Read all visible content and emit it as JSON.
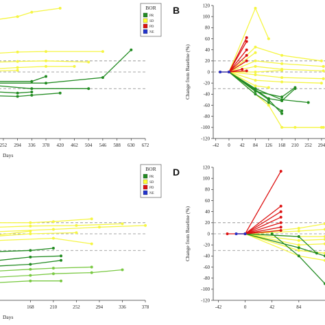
{
  "legend": {
    "title": "BOR",
    "entries": [
      {
        "label": "PR",
        "color": "#228b22"
      },
      {
        "label": "SD",
        "color": "#ffff33"
      },
      {
        "label": "PD",
        "color": "#dd1111"
      },
      {
        "label": "NE",
        "color": "#2233cc"
      }
    ]
  },
  "colors": {
    "PR": "#228b22",
    "SD": "#f5f542",
    "PD": "#dd1111",
    "NE": "#2233cc",
    "PR2": "#7ac943"
  },
  "chart_data": [
    {
      "id": "A",
      "type": "line",
      "panel_label": "",
      "xlabel": "Days",
      "ylabel": "",
      "xticks": [
        "252",
        "294",
        "336",
        "378",
        "420",
        "462",
        "504",
        "546",
        "588",
        "630",
        "672"
      ],
      "xlim": [
        238,
        672
      ],
      "ylim": [
        -120,
        120
      ],
      "ref_lines": [
        20,
        0,
        -30
      ],
      "series": [
        {
          "bor": "SD",
          "x": [
            238,
            294,
            336,
            420
          ],
          "y": [
            95,
            100,
            108,
            115
          ]
        },
        {
          "bor": "SD",
          "x": [
            238,
            294,
            378,
            546
          ],
          "y": [
            34,
            36,
            37,
            37
          ]
        },
        {
          "bor": "SD",
          "x": [
            238,
            294,
            378,
            504
          ],
          "y": [
            18,
            19,
            20,
            18
          ]
        },
        {
          "bor": "SD",
          "x": [
            238,
            294,
            378,
            462
          ],
          "y": [
            6,
            8,
            10,
            10
          ]
        },
        {
          "bor": "SD",
          "x": [
            238,
            294
          ],
          "y": [
            2,
            3
          ]
        },
        {
          "bor": "PR",
          "x": [
            238,
            378,
            546,
            630
          ],
          "y": [
            -20,
            -20,
            -10,
            40
          ]
        },
        {
          "bor": "PR",
          "x": [
            238,
            336,
            378
          ],
          "y": [
            -17,
            -17,
            -8
          ]
        },
        {
          "bor": "PR",
          "x": [
            238,
            336,
            504
          ],
          "y": [
            -25,
            -30,
            -30
          ]
        },
        {
          "bor": "PR",
          "x": [
            238,
            294,
            336
          ],
          "y": [
            -36,
            -38,
            -36
          ]
        },
        {
          "bor": "PR",
          "x": [
            238,
            294,
            336,
            420
          ],
          "y": [
            -43,
            -44,
            -42,
            -38
          ]
        }
      ]
    },
    {
      "id": "B",
      "type": "line",
      "panel_label": "B",
      "xlabel": "",
      "ylabel": "Change from Baseline (%)",
      "xticks": [
        "-42",
        "0",
        "42",
        "84",
        "126",
        "168",
        "210",
        "252",
        "294"
      ],
      "yticks": [
        "120",
        "100",
        "80",
        "60",
        "40",
        "20",
        "0",
        "-20",
        "-40",
        "-60",
        "-80",
        "-100",
        "-120"
      ],
      "xlim": [
        -50,
        305
      ],
      "ylim": [
        -120,
        120
      ],
      "ref_lines": [
        20,
        0,
        -30
      ],
      "series": [
        {
          "bor": "SD",
          "x": [
            -28,
            0,
            84,
            126
          ],
          "y": [
            0,
            0,
            115,
            60
          ]
        },
        {
          "bor": "SD",
          "x": [
            0,
            84,
            168,
            294
          ],
          "y": [
            0,
            45,
            30,
            20
          ]
        },
        {
          "bor": "SD",
          "x": [
            0,
            84,
            168,
            300
          ],
          "y": [
            0,
            20,
            15,
            10
          ]
        },
        {
          "bor": "SD",
          "x": [
            0,
            84,
            168,
            300
          ],
          "y": [
            0,
            10,
            5,
            2
          ]
        },
        {
          "bor": "SD",
          "x": [
            0,
            84,
            168,
            300
          ],
          "y": [
            0,
            -5,
            -10,
            -12
          ]
        },
        {
          "bor": "SD",
          "x": [
            0,
            84,
            168,
            294
          ],
          "y": [
            0,
            -15,
            -18,
            -20
          ]
        },
        {
          "bor": "SD",
          "x": [
            0,
            84,
            126
          ],
          "y": [
            0,
            -25,
            -28
          ]
        },
        {
          "bor": "SD",
          "x": [
            0,
            84,
            168
          ],
          "y": [
            0,
            0,
            3
          ]
        },
        {
          "bor": "SD",
          "x": [
            0,
            84
          ],
          "y": [
            0,
            35
          ]
        },
        {
          "bor": "SD",
          "x": [
            0,
            126,
            168,
            210,
            294,
            300
          ],
          "y": [
            0,
            -60,
            -100,
            -100,
            -100,
            -100
          ]
        },
        {
          "bor": "PD",
          "x": [
            -28,
            0,
            56
          ],
          "y": [
            0,
            0,
            62
          ]
        },
        {
          "bor": "PD",
          "x": [
            0,
            56
          ],
          "y": [
            0,
            55
          ]
        },
        {
          "bor": "PD",
          "x": [
            0,
            56
          ],
          "y": [
            0,
            40
          ]
        },
        {
          "bor": "PD",
          "x": [
            0,
            56
          ],
          "y": [
            0,
            30
          ]
        },
        {
          "bor": "PD",
          "x": [
            0,
            56
          ],
          "y": [
            0,
            20
          ]
        },
        {
          "bor": "PD",
          "x": [
            0,
            42
          ],
          "y": [
            0,
            5
          ]
        },
        {
          "bor": "PD",
          "x": [
            0,
            56
          ],
          "y": [
            0,
            2
          ]
        },
        {
          "bor": "PR",
          "x": [
            0,
            84,
            168,
            252
          ],
          "y": [
            0,
            -30,
            -50,
            -55
          ]
        },
        {
          "bor": "PR",
          "x": [
            0,
            84,
            126,
            168
          ],
          "y": [
            0,
            -40,
            -55,
            -70
          ]
        },
        {
          "bor": "PR",
          "x": [
            0,
            126,
            168,
            210
          ],
          "y": [
            0,
            -48,
            -52,
            -30
          ]
        },
        {
          "bor": "PR",
          "x": [
            0,
            84,
            168,
            210
          ],
          "y": [
            0,
            -35,
            -45,
            -28
          ]
        },
        {
          "bor": "PR",
          "x": [
            0,
            126,
            168
          ],
          "y": [
            0,
            -50,
            -75
          ]
        },
        {
          "bor": "NE",
          "x": [
            -28,
            0
          ],
          "y": [
            0,
            0
          ]
        }
      ]
    },
    {
      "id": "C",
      "type": "line",
      "panel_label": "",
      "xlabel": "Days",
      "ylabel": "",
      "xticks": [
        "168",
        "210",
        "252",
        "294",
        "336",
        "378"
      ],
      "xlim": [
        110,
        378
      ],
      "ylim": [
        -120,
        120
      ],
      "ref_lines": [
        20,
        0,
        -30
      ],
      "series": [
        {
          "bor": "SD",
          "x": [
            110,
            168,
            210,
            280
          ],
          "y": [
            20,
            20,
            22,
            27
          ]
        },
        {
          "bor": "SD",
          "x": [
            110,
            168,
            252,
            336
          ],
          "y": [
            12,
            14,
            15,
            18
          ]
        },
        {
          "bor": "SD",
          "x": [
            110,
            210,
            294,
            378
          ],
          "y": [
            4,
            8,
            12,
            15
          ]
        },
        {
          "bor": "SD",
          "x": [
            110,
            168,
            252
          ],
          "y": [
            -4,
            0,
            2
          ]
        },
        {
          "bor": "SD",
          "x": [
            110,
            210,
            280
          ],
          "y": [
            -12,
            -8,
            -18
          ]
        },
        {
          "bor": "SD",
          "x": [
            110,
            168
          ],
          "y": [
            -2,
            5
          ]
        },
        {
          "bor": "PR",
          "x": [
            110,
            168,
            210
          ],
          "y": [
            -32,
            -30,
            -26
          ]
        },
        {
          "bor": "PR",
          "x": [
            110,
            168,
            224
          ],
          "y": [
            -48,
            -42,
            -40
          ]
        },
        {
          "bor": "PR",
          "x": [
            110,
            168,
            224
          ],
          "y": [
            -58,
            -55,
            -48
          ]
        },
        {
          "bor": "PR2",
          "x": [
            110,
            168,
            210,
            280
          ],
          "y": [
            -67,
            -64,
            -62,
            -60
          ]
        },
        {
          "bor": "PR2",
          "x": [
            110,
            168,
            210,
            280,
            336
          ],
          "y": [
            -78,
            -75,
            -72,
            -70,
            -65
          ]
        },
        {
          "bor": "PR2",
          "x": [
            110,
            168,
            224
          ],
          "y": [
            -88,
            -85,
            -85
          ]
        }
      ]
    },
    {
      "id": "D",
      "type": "line",
      "panel_label": "D",
      "xlabel": "",
      "ylabel": "Change from Baseline (%)",
      "xticks": [
        "-42",
        "0",
        "42",
        "84"
      ],
      "yticks": [
        "120",
        "100",
        "80",
        "60",
        "40",
        "20",
        "0",
        "-20",
        "-40",
        "-60",
        "-80",
        "-100",
        "-120"
      ],
      "xlim": [
        -50,
        125
      ],
      "ylim": [
        -120,
        120
      ],
      "ref_lines": [
        20,
        0,
        -30
      ],
      "series": [
        {
          "bor": "PD",
          "x": [
            -28,
            0,
            56
          ],
          "y": [
            0,
            0,
            113
          ]
        },
        {
          "bor": "PD",
          "x": [
            0,
            56
          ],
          "y": [
            0,
            50
          ]
        },
        {
          "bor": "PD",
          "x": [
            0,
            56
          ],
          "y": [
            0,
            40
          ]
        },
        {
          "bor": "PD",
          "x": [
            0,
            56
          ],
          "y": [
            0,
            30
          ]
        },
        {
          "bor": "PD",
          "x": [
            0,
            56
          ],
          "y": [
            0,
            20
          ]
        },
        {
          "bor": "PD",
          "x": [
            0,
            56
          ],
          "y": [
            0,
            12
          ]
        },
        {
          "bor": "PD",
          "x": [
            -14,
            0,
            56
          ],
          "y": [
            0,
            0,
            6
          ]
        },
        {
          "bor": "SD",
          "x": [
            0,
            84,
            125
          ],
          "y": [
            0,
            10,
            18
          ]
        },
        {
          "bor": "SD",
          "x": [
            0,
            84,
            125
          ],
          "y": [
            0,
            5,
            8
          ]
        },
        {
          "bor": "SD",
          "x": [
            0,
            84,
            125
          ],
          "y": [
            0,
            -5,
            -5
          ]
        },
        {
          "bor": "SD",
          "x": [
            0,
            84,
            125
          ],
          "y": [
            0,
            -12,
            -10
          ]
        },
        {
          "bor": "SD",
          "x": [
            0,
            84,
            125
          ],
          "y": [
            0,
            -20,
            -18
          ]
        },
        {
          "bor": "SD",
          "x": [
            0,
            84,
            125
          ],
          "y": [
            0,
            -30,
            -35
          ]
        },
        {
          "bor": "SD",
          "x": [
            0,
            84,
            125
          ],
          "y": [
            0,
            -40,
            -48
          ]
        },
        {
          "bor": "PR",
          "x": [
            0,
            84,
            125
          ],
          "y": [
            0,
            -25,
            -40
          ]
        },
        {
          "bor": "PR",
          "x": [
            0,
            84,
            112
          ],
          "y": [
            0,
            -5,
            -35
          ]
        },
        {
          "bor": "PR",
          "x": [
            42,
            84,
            125
          ],
          "y": [
            0,
            -40,
            -90
          ]
        },
        {
          "bor": "NE",
          "x": [
            -14,
            0
          ],
          "y": [
            0,
            0
          ]
        }
      ]
    }
  ]
}
